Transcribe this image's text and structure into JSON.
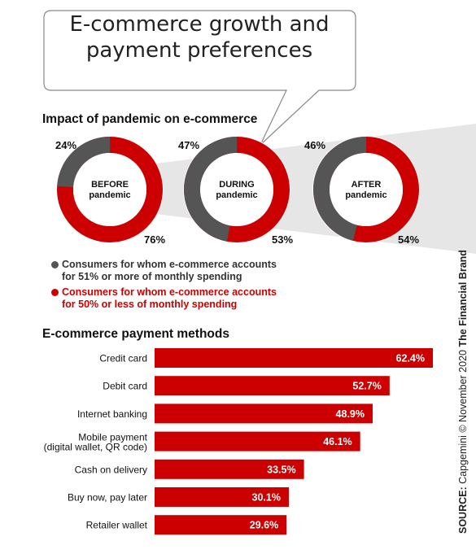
{
  "header": {
    "title_line1": "E-commerce growth and",
    "title_line2": "payment preferences"
  },
  "colors": {
    "gray": "#555555",
    "red": "#cc0000",
    "funnel": "#e6e6e6"
  },
  "chart_data": [
    {
      "type": "pie",
      "title": "Impact of pandemic on e-commerce",
      "donuts": [
        {
          "label_line1": "BEFORE",
          "label_line2": "pandemic",
          "gray_value": 24,
          "red_value": 76,
          "gray_label": "24%",
          "red_label": "76%"
        },
        {
          "label_line1": "DURING",
          "label_line2": "pandemic",
          "gray_value": 47,
          "red_value": 53,
          "gray_label": "47%",
          "red_label": "53%"
        },
        {
          "label_line1": "AFTER",
          "label_line2": "pandemic",
          "gray_value": 46,
          "red_value": 54,
          "gray_label": "46%",
          "red_label": "54%"
        }
      ],
      "legend": {
        "gray_line1": "Consumers for whom e-commerce accounts",
        "gray_line2": "for 51% or more of monthly spending",
        "red_line1": "Consumers for whom e-commerce accounts",
        "red_line2": "for 50% or less of monthly spending"
      }
    },
    {
      "type": "bar",
      "orientation": "horizontal",
      "title": "E-commerce payment methods",
      "categories": [
        [
          "Credit card"
        ],
        [
          "Debit card"
        ],
        [
          "Internet banking"
        ],
        [
          "Mobile payment",
          "(digital wallet, QR code)"
        ],
        [
          "Cash on delivery"
        ],
        [
          "Buy now, pay later"
        ],
        [
          "Retailer wallet"
        ]
      ],
      "values": [
        62.4,
        52.7,
        48.9,
        46.1,
        33.5,
        30.1,
        29.6
      ],
      "value_labels": [
        "62.4%",
        "52.7%",
        "48.9%",
        "46.1%",
        "33.5%",
        "30.1%",
        "29.6%"
      ]
    }
  ],
  "source": {
    "prefix": "SOURCE:",
    "text": " Capgemini © November 2020 ",
    "brand": "The Financial Brand"
  }
}
